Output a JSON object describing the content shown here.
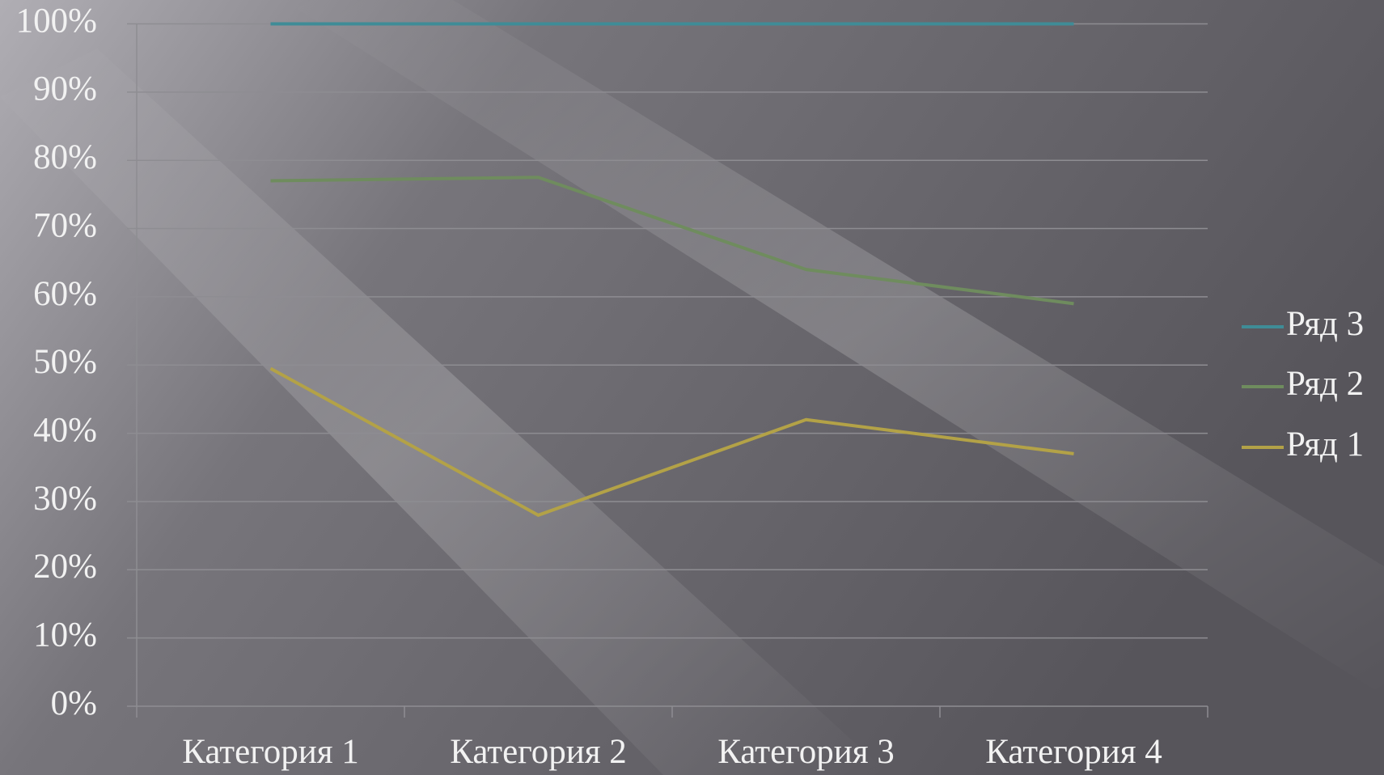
{
  "chart_data": {
    "type": "line",
    "stacking": "percent",
    "categories": [
      "Категория 1",
      "Категория 2",
      "Категория 3",
      "Категория 4"
    ],
    "series": [
      {
        "name": "Ряд 1",
        "color": "#b3a247",
        "values": [
          49.5,
          28,
          42,
          37
        ]
      },
      {
        "name": "Ряд 2",
        "color": "#6f8c5e",
        "values": [
          27.5,
          49.5,
          22,
          22
        ]
      },
      {
        "name": "Ряд 3",
        "color": "#3f8c97",
        "values": [
          23,
          22.5,
          36,
          41
        ]
      }
    ],
    "ylim": [
      0,
      100
    ],
    "yticks": [
      {
        "value": 0,
        "label": "0%"
      },
      {
        "value": 10,
        "label": "10%"
      },
      {
        "value": 20,
        "label": "20%"
      },
      {
        "value": 30,
        "label": "30%"
      },
      {
        "value": 40,
        "label": "40%"
      },
      {
        "value": 50,
        "label": "50%"
      },
      {
        "value": 60,
        "label": "60%"
      },
      {
        "value": 70,
        "label": "70%"
      },
      {
        "value": 80,
        "label": "80%"
      },
      {
        "value": 90,
        "label": "90%"
      },
      {
        "value": 100,
        "label": "100%"
      }
    ],
    "grid": true,
    "legend": "right"
  }
}
